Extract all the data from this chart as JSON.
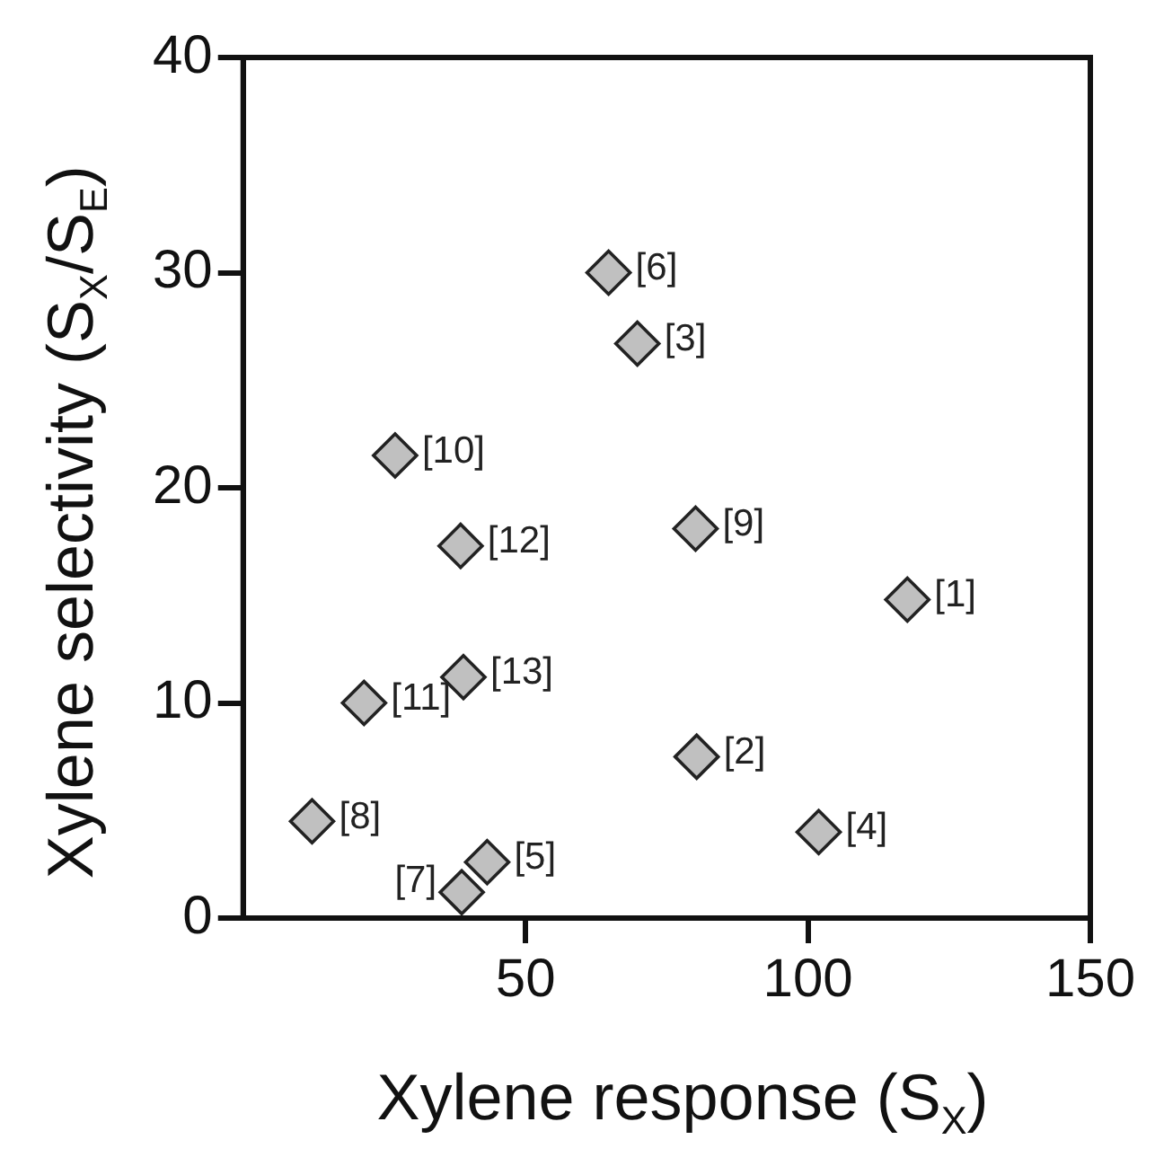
{
  "chart_data": {
    "type": "scatter",
    "xlabel": "Xylene response (S$_{X}$)",
    "ylabel": "Xylene selectivity (S$_{X}$/S$_{E}$)",
    "x": [
      117.6,
      80.3,
      69.8,
      101.9,
      43.2,
      64.7,
      38.7,
      12.2,
      80.1,
      26.9,
      21.4,
      38.5,
      39.0
    ],
    "series": [
      {
        "color": "#c0c0c0",
        "values": [
          14.8,
          7.5,
          26.7,
          4.0,
          2.6,
          30.0,
          1.2,
          4.5,
          18.1,
          21.5,
          10.0,
          17.3,
          11.2
        ]
      }
    ],
    "xlim": [
      0,
      150
    ],
    "xticks": [
      50,
      100,
      150
    ],
    "ylim": [
      0,
      40
    ],
    "yticks": [
      0,
      10,
      20,
      30,
      40
    ],
    "marker": "diamond",
    "grid": false,
    "legend": false,
    "annotations": [
      {
        "text": "[1]",
        "x": 117.6,
        "y": 14.8
      },
      {
        "text": "[2]",
        "x": 80.3,
        "y": 7.5
      },
      {
        "text": "[3]",
        "x": 69.8,
        "y": 26.7
      },
      {
        "text": "[4]",
        "x": 101.9,
        "y": 4.0
      },
      {
        "text": "[5]",
        "x": 43.2,
        "y": 2.6
      },
      {
        "text": "[6]",
        "x": 64.7,
        "y": 30.0
      },
      {
        "text": "[7]",
        "x": 38.7,
        "y": 1.2
      },
      {
        "text": "[8]",
        "x": 12.2,
        "y": 4.5
      },
      {
        "text": "[9]",
        "x": 80.1,
        "y": 18.1
      },
      {
        "text": "[10]",
        "x": 26.9,
        "y": 21.5
      },
      {
        "text": "[11]",
        "x": 21.4,
        "y": 10.0
      },
      {
        "text": "[12]",
        "x": 38.5,
        "y": 17.3
      },
      {
        "text": "[13]",
        "x": 39.0,
        "y": 11.2
      }
    ]
  }
}
